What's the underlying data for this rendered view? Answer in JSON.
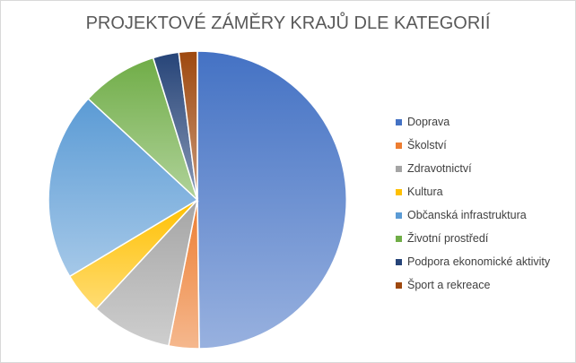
{
  "chart_data": {
    "type": "pie",
    "title": "PROJEKTOVÉ ZÁMĚRY KRAJŮ DLE KATEGORIÍ",
    "legend_position": "right",
    "slices": [
      {
        "name": "Doprava",
        "value": 49.8,
        "color": "#4472c4"
      },
      {
        "name": "Školství",
        "value": 3.3,
        "color": "#ed7d31"
      },
      {
        "name": "Zdravotnictví",
        "value": 8.8,
        "color": "#a5a5a5"
      },
      {
        "name": "Kultura",
        "value": 4.5,
        "color": "#ffc000"
      },
      {
        "name": "Občanská infrastruktura",
        "value": 20.5,
        "color": "#5b9bd5"
      },
      {
        "name": "Životní prostředí",
        "value": 8.3,
        "color": "#70ad47"
      },
      {
        "name": "Podpora ekonomické aktivity",
        "value": 2.8,
        "color": "#264478"
      },
      {
        "name": "Šport a rekreace",
        "value": 2.0,
        "color": "#9e480e"
      }
    ]
  }
}
